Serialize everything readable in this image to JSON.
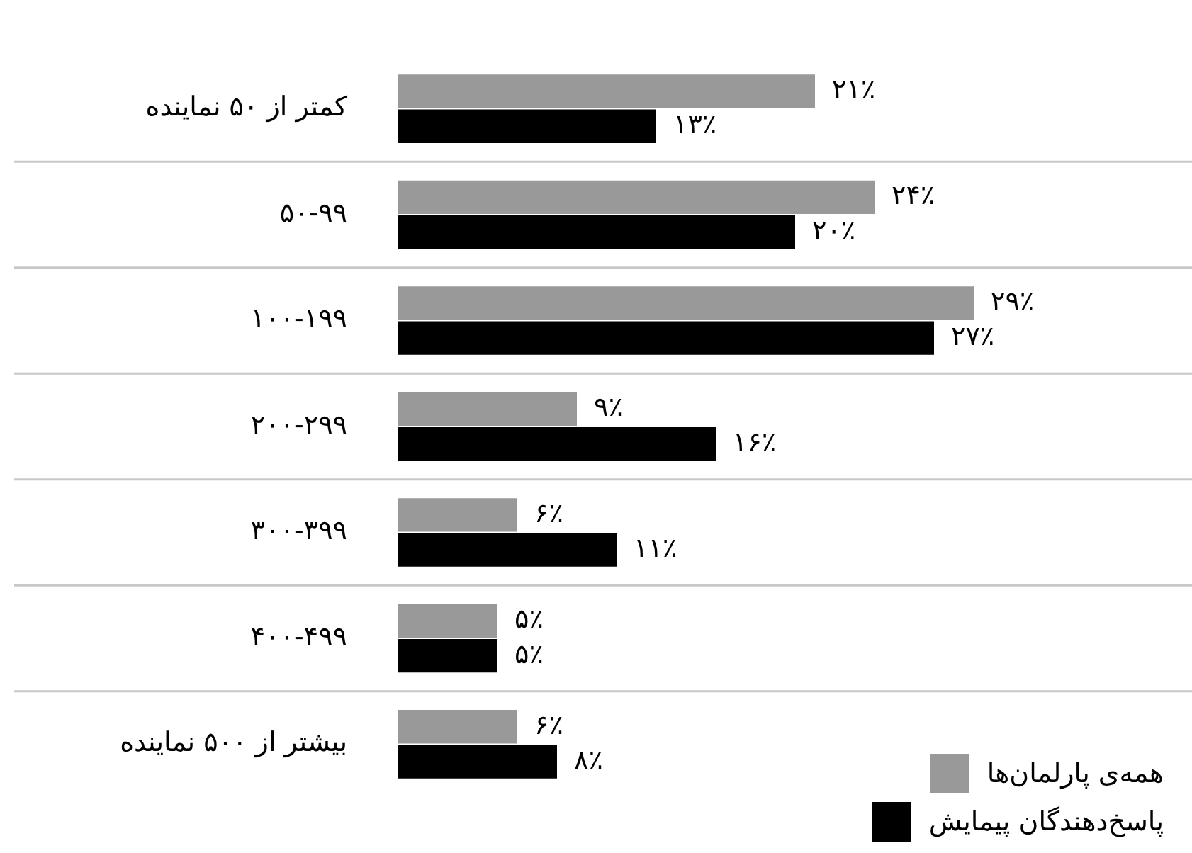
{
  "chart_data": {
    "type": "bar",
    "orientation": "horizontal",
    "categories": [
      "کمتر از ۵۰ نماینده",
      "۵۰-۹۹",
      "۱۰۰-۱۹۹",
      "۲۰۰-۲۹۹",
      "۳۰۰-۳۹۹",
      "۴۰۰-۴۹۹",
      "بیشتر از ۵۰۰ نماینده"
    ],
    "series": [
      {
        "name": "همه‌ی پارلمان‌ها",
        "color": "#999999",
        "values": [
          21,
          24,
          29,
          9,
          6,
          5,
          6
        ],
        "value_labels": [
          "۲۱٪",
          "۲۴٪",
          "۲۹٪",
          "۹٪",
          "۶٪",
          "۵٪",
          "۶٪"
        ]
      },
      {
        "name": "پاسخ‌دهندگان پیمایش",
        "color": "#000000",
        "values": [
          13,
          20,
          27,
          16,
          11,
          5,
          8
        ],
        "value_labels": [
          "۱۳٪",
          "۲۰٪",
          "۲۷٪",
          "۱۶٪",
          "۱۱٪",
          "۵٪",
          "۸٪"
        ]
      }
    ],
    "xlim": [
      0,
      40
    ],
    "tick_labels": "y",
    "grid": "y",
    "legend": "bottom right"
  }
}
